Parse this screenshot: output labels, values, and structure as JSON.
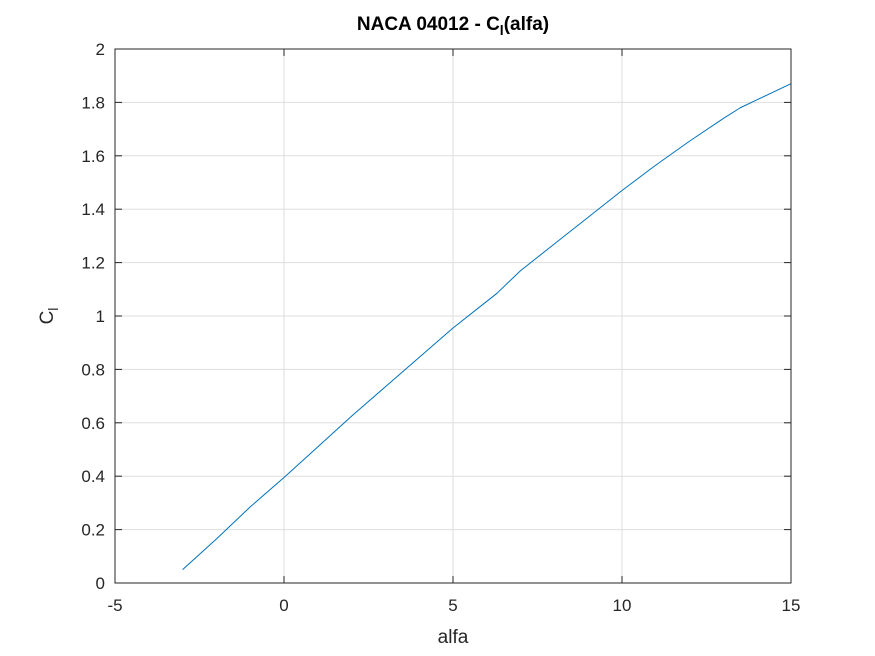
{
  "chart_data": {
    "type": "line",
    "title": {
      "prefix": "NACA 04012 - C",
      "subscript": "l",
      "suffix": "(alfa)"
    },
    "xlabel": "alfa",
    "ylabel": {
      "main": "C",
      "subscript": "l"
    },
    "xlim": [
      -5,
      15
    ],
    "ylim": [
      0,
      2
    ],
    "xticks": [
      -5,
      0,
      5,
      10,
      15
    ],
    "xtick_labels": [
      "-5",
      "0",
      "5",
      "10",
      "15"
    ],
    "yticks": [
      0,
      0.2,
      0.4,
      0.6,
      0.8,
      1,
      1.2,
      1.4,
      1.6,
      1.8,
      2
    ],
    "ytick_labels": [
      "0",
      "0.2",
      "0.4",
      "0.6",
      "0.8",
      "1",
      "1.2",
      "1.4",
      "1.6",
      "1.8",
      "2"
    ],
    "grid": true,
    "series": [
      {
        "color": "#0072BD",
        "x": [
          -3,
          -2,
          -1,
          0,
          1,
          2,
          3,
          4,
          5,
          6,
          6.3,
          7,
          8,
          9,
          10,
          11,
          12,
          13,
          13.5,
          14,
          15
        ],
        "y": [
          0.05,
          0.165,
          0.285,
          0.395,
          0.51,
          0.625,
          0.735,
          0.845,
          0.955,
          1.055,
          1.085,
          1.17,
          1.27,
          1.37,
          1.47,
          1.565,
          1.655,
          1.74,
          1.78,
          1.81,
          1.87
        ]
      }
    ]
  }
}
